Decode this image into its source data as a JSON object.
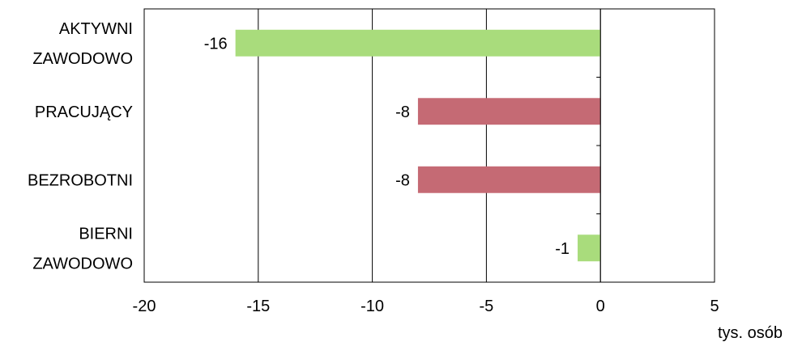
{
  "chart_data": {
    "type": "bar",
    "orientation": "horizontal",
    "categories": [
      [
        "AKTYWNI",
        "ZAWODOWO"
      ],
      [
        "PRACUJĄCY"
      ],
      [
        "BEZROBOTNI"
      ],
      [
        "BIERNI",
        "ZAWODOWO"
      ]
    ],
    "values": [
      -16,
      -8,
      -8,
      -1
    ],
    "data_labels": [
      "-16",
      "-8",
      "-8",
      "-1"
    ],
    "bar_colors": [
      "#a9dc7c",
      "#c56a74",
      "#c56a74",
      "#a9dc7c"
    ],
    "xlim": [
      -20,
      5
    ],
    "xticks": [
      "-20",
      "-15",
      "-10",
      "-5",
      "0",
      "5"
    ],
    "xtick_values": [
      -20,
      -15,
      -10,
      -5,
      0,
      5
    ],
    "unit_label": "tys. osób",
    "grid": "vertical",
    "legend": "none"
  }
}
